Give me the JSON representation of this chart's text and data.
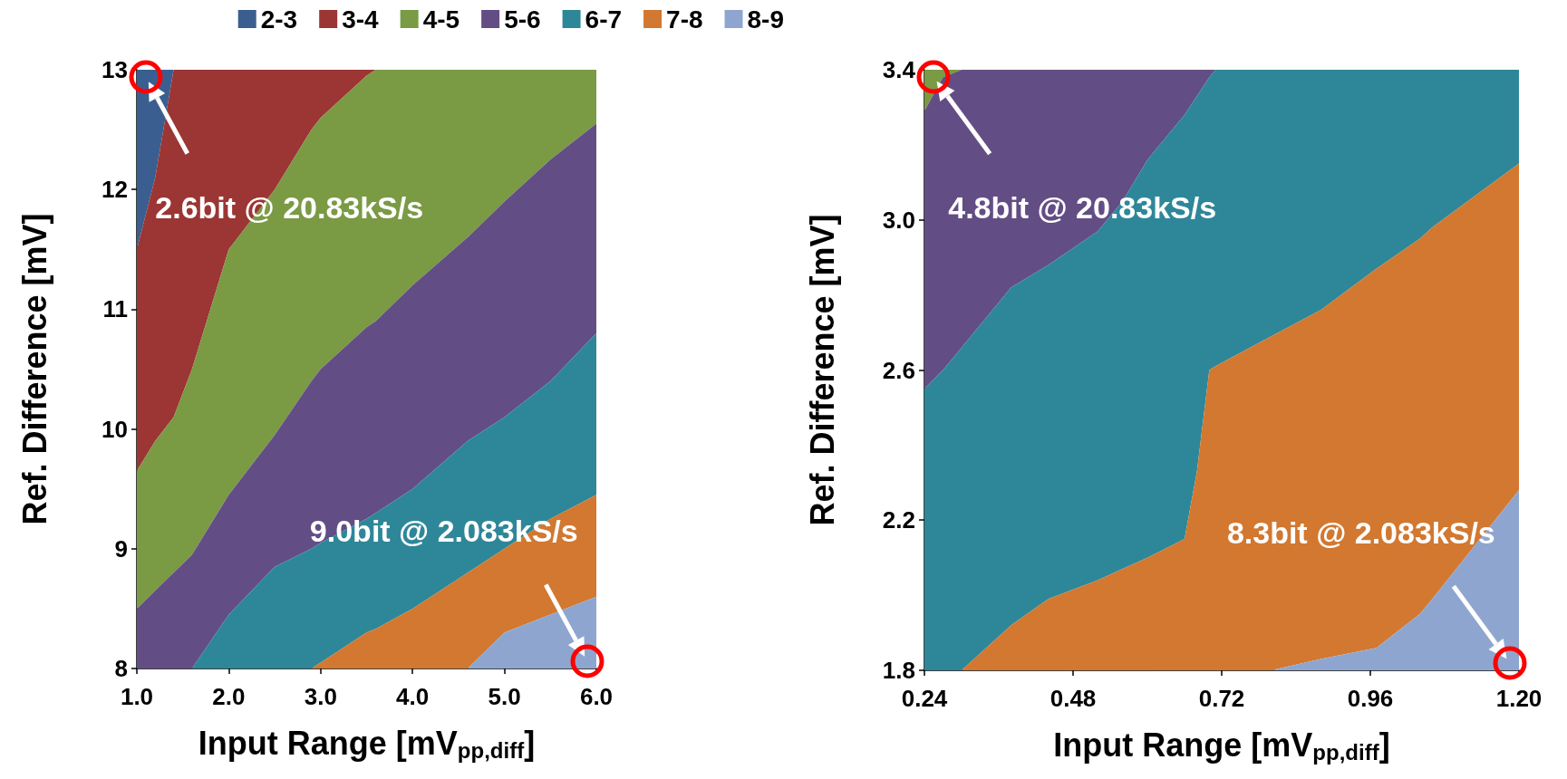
{
  "chart_data": [
    {
      "type": "area",
      "legend": "top",
      "xlabel": "Input Range [mV$_{pp,diff}$]",
      "ylabel": "Ref. Difference [mV]",
      "x": [
        1.0,
        1.2,
        1.4,
        1.6,
        2.0,
        2.5,
        2.9,
        3.0,
        3.5,
        3.6,
        4.0,
        4.6,
        5.0,
        5.5,
        6.0
      ],
      "xlim": [
        1.0,
        6.0
      ],
      "xticks": [
        {
          "value": 1,
          "label": "1.0"
        },
        {
          "value": 2,
          "label": "2.0"
        },
        {
          "value": 3,
          "label": "3.0"
        },
        {
          "value": 4,
          "label": "4.0"
        },
        {
          "value": 5,
          "label": "5.0"
        },
        {
          "value": 6,
          "label": "6.0"
        }
      ],
      "ylim": [
        8,
        13
      ],
      "yticks": [
        8,
        9,
        10,
        11,
        12,
        13
      ],
      "series": [
        {
          "name": "2-3",
          "color": "#3b5e91",
          "values": [
            13,
            13,
            13,
            null,
            null,
            null,
            null,
            null,
            null,
            null,
            null,
            null,
            null,
            null,
            null
          ]
        },
        {
          "name": "3-4",
          "color": "#9b3634",
          "values": [
            11.5,
            12.1,
            13,
            13,
            13,
            13,
            13,
            13,
            13,
            13,
            null,
            null,
            null,
            null,
            null
          ]
        },
        {
          "name": "4-5",
          "color": "#7a9a44",
          "values": [
            9.65,
            9.9,
            10.1,
            10.5,
            11.5,
            12.0,
            12.5,
            12.6,
            12.95,
            13,
            13,
            13,
            13,
            13,
            13
          ]
        },
        {
          "name": "5-6",
          "color": "#634d85",
          "values": [
            8.5,
            8.65,
            8.8,
            8.95,
            9.45,
            9.95,
            10.4,
            10.5,
            10.85,
            10.9,
            11.2,
            11.6,
            11.9,
            12.25,
            12.55
          ]
        },
        {
          "name": "6-7",
          "color": "#2e8799",
          "values": [
            null,
            null,
            null,
            8,
            8.45,
            8.85,
            9.0,
            9.05,
            9.25,
            9.3,
            9.5,
            9.9,
            10.1,
            10.4,
            10.8
          ]
        },
        {
          "name": "7-8",
          "color": "#d27830",
          "values": [
            null,
            null,
            null,
            null,
            null,
            null,
            8,
            8.05,
            8.3,
            8.33,
            8.5,
            8.8,
            9.0,
            9.25,
            9.45
          ]
        },
        {
          "name": "8-9",
          "color": "#8ea6cf",
          "values": [
            null,
            null,
            null,
            null,
            null,
            null,
            null,
            null,
            null,
            null,
            null,
            8,
            8.3,
            8.45,
            8.6
          ]
        }
      ],
      "annotations": [
        "2.6bit @ 20.83kS/s",
        "9.0bit @ 2.083kS/s"
      ]
    },
    {
      "type": "area",
      "xlabel": "Input Range [mV$_{pp,diff}$]",
      "ylabel": "Ref. Difference [mV]",
      "x": [
        0.24,
        0.27,
        0.3,
        0.38,
        0.44,
        0.52,
        0.56,
        0.6,
        0.66,
        0.68,
        0.7,
        0.71,
        0.8,
        0.88,
        0.97,
        1.04,
        1.06,
        1.2
      ],
      "xlim": [
        0.24,
        1.2
      ],
      "xticks": [
        0.24,
        0.48,
        0.72,
        0.96,
        {
          "value": 1.2,
          "label": "1.20"
        }
      ],
      "ylim": [
        1.8,
        3.4
      ],
      "yticks": [
        1.8,
        2.2,
        2.6,
        {
          "value": 3,
          "label": "3.0"
        },
        3.4
      ],
      "series": [
        {
          "name": "4-5",
          "color": "#7a9a44",
          "values": [
            3.4,
            3.4,
            3.4,
            null,
            null,
            null,
            null,
            null,
            null,
            null,
            null,
            null,
            null,
            null,
            null,
            null,
            null,
            null
          ]
        },
        {
          "name": "5-6",
          "color": "#634d85",
          "values": [
            3.29,
            3.38,
            3.4,
            3.4,
            3.4,
            3.4,
            3.4,
            3.4,
            3.4,
            3.4,
            3.4,
            3.4,
            null,
            null,
            null,
            null,
            null,
            null
          ]
        },
        {
          "name": "6-7",
          "color": "#2e8799",
          "values": [
            2.55,
            2.6,
            2.66,
            2.82,
            2.88,
            2.97,
            3.05,
            3.16,
            3.28,
            3.33,
            3.38,
            3.4,
            3.4,
            3.4,
            3.4,
            3.4,
            3.4,
            3.4
          ]
        },
        {
          "name": "7-8",
          "color": "#d27830",
          "values": [
            null,
            null,
            1.8,
            1.92,
            1.99,
            2.04,
            2.07,
            2.1,
            2.15,
            2.33,
            2.6,
            2.61,
            2.69,
            2.76,
            2.87,
            2.95,
            2.98,
            3.15
          ]
        },
        {
          "name": "8-9",
          "color": "#8ea6cf",
          "values": [
            null,
            null,
            null,
            null,
            null,
            null,
            null,
            null,
            null,
            null,
            null,
            null,
            1.8,
            1.83,
            1.86,
            1.95,
            1.99,
            2.28
          ]
        }
      ],
      "annotations": [
        "4.8bit @ 20.83kS/s",
        "8.3bit @ 2.083kS/s"
      ]
    }
  ]
}
